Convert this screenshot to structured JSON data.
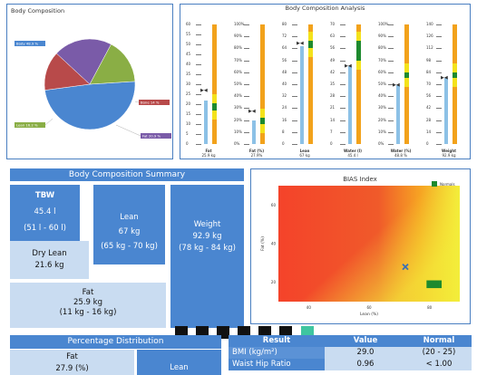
{
  "composition_pie": {
    "title": "Body Composition",
    "slices": [
      {
        "label": "Body 48.9 %",
        "value": 48.9,
        "color": "#4a86d0"
      },
      {
        "label": "Bone 14 %",
        "value": 14,
        "color": "#b84a4a"
      },
      {
        "label": "Fat 20.9 %",
        "value": 20.9,
        "color": "#7a5ba8"
      },
      {
        "label": "Lean 16.2 %",
        "value": 16.2,
        "color": "#8aae45"
      }
    ]
  },
  "analysis": {
    "title": "Body Composition Analysis",
    "gauges": [
      {
        "name": "Fat",
        "value": "25.9 kg",
        "ticks": [
          "60",
          "55",
          "50",
          "45",
          "40",
          "35",
          "30",
          "25",
          "20",
          "15",
          "10",
          "5",
          "0"
        ],
        "level": 0.36,
        "band": [
          0.28,
          0.34
        ],
        "arrow": 0.45
      },
      {
        "name": "Fat (%)",
        "value": "27.9%",
        "ticks": [
          "100%",
          "90%",
          "80%",
          "70%",
          "60%",
          "50%",
          "40%",
          "30%",
          "20%",
          "10%",
          "0%"
        ],
        "level": 0.2,
        "band": [
          0.17,
          0.22
        ],
        "arrow": 0.27
      },
      {
        "name": "Lean",
        "value": "67 kg",
        "ticks": [
          "80",
          "72",
          "64",
          "56",
          "48",
          "40",
          "32",
          "24",
          "16",
          "8",
          "0"
        ],
        "level": 0.82,
        "band": [
          0.8,
          0.86
        ],
        "arrow": 0.84
      },
      {
        "name": "Water (l)",
        "value": "45.4 l",
        "ticks": [
          "70",
          "63",
          "56",
          "49",
          "42",
          "35",
          "28",
          "21",
          "14",
          "7",
          "0"
        ],
        "level": 0.65,
        "band": [
          0.7,
          0.86
        ],
        "arrow": 0.65
      },
      {
        "name": "Water (%)",
        "value": "48.8 %",
        "ticks": [
          "100%",
          "90%",
          "80%",
          "70%",
          "60%",
          "50%",
          "40%",
          "30%",
          "20%",
          "10%",
          "0%"
        ],
        "level": 0.49,
        "band": [
          0.55,
          0.6
        ],
        "arrow": 0.49
      },
      {
        "name": "Weight",
        "value": "92.9 kg",
        "ticks": [
          "140",
          "126",
          "112",
          "98",
          "84",
          "70",
          "56",
          "42",
          "28",
          "14",
          "0"
        ],
        "level": 0.55,
        "band": [
          0.55,
          0.6
        ],
        "arrow": 0.55
      }
    ]
  },
  "summary": {
    "title": "Body Composition Summary",
    "tbw": {
      "label": "TBW",
      "value": "45.4 l",
      "range": "(51 l - 60 l)"
    },
    "dry_lean": {
      "label": "Dry Lean",
      "value": "21.6 kg"
    },
    "lean": {
      "label": "Lean",
      "value": "67 kg",
      "range": "(65 kg - 70 kg)"
    },
    "weight": {
      "label": "Weight",
      "value": "92.9 kg",
      "range": "(78 kg - 84 kg)"
    },
    "fat": {
      "label": "Fat",
      "value": "25.9 kg",
      "range": "(11 kg - 16 kg)"
    }
  },
  "bias": {
    "title": "BIAS Index",
    "legend": "Normals",
    "xlabel": "Lean (%)",
    "ylabel": "Fat (%)",
    "xticks": [
      "40",
      "60",
      "80"
    ],
    "yticks": [
      "60",
      "40",
      "20"
    ],
    "point": {
      "lean_pct": 72,
      "fat_pct": 28
    },
    "normal_zone": {
      "lean_pct": [
        79,
        84
      ],
      "fat_pct": [
        17,
        21
      ]
    }
  },
  "percentage": {
    "title": "Percentage Distribution",
    "fat_label": "Fat",
    "fat_value": "27.9 (%)",
    "lean_label": "Lean"
  },
  "results": {
    "headers": [
      "Result",
      "Value",
      "Normal"
    ],
    "rows": [
      {
        "name": "BMI (kg/m²)",
        "value": "29.0",
        "normal": "(20 - 25)"
      },
      {
        "name": "Waist Hip Ratio",
        "value": "0.96",
        "normal": "< 1.00"
      }
    ]
  },
  "colors": {
    "accent": "#4a86d0",
    "light": "#c9dcf1",
    "gauge_orange": "#f2a21b",
    "gauge_blue": "#8cc1e6"
  }
}
